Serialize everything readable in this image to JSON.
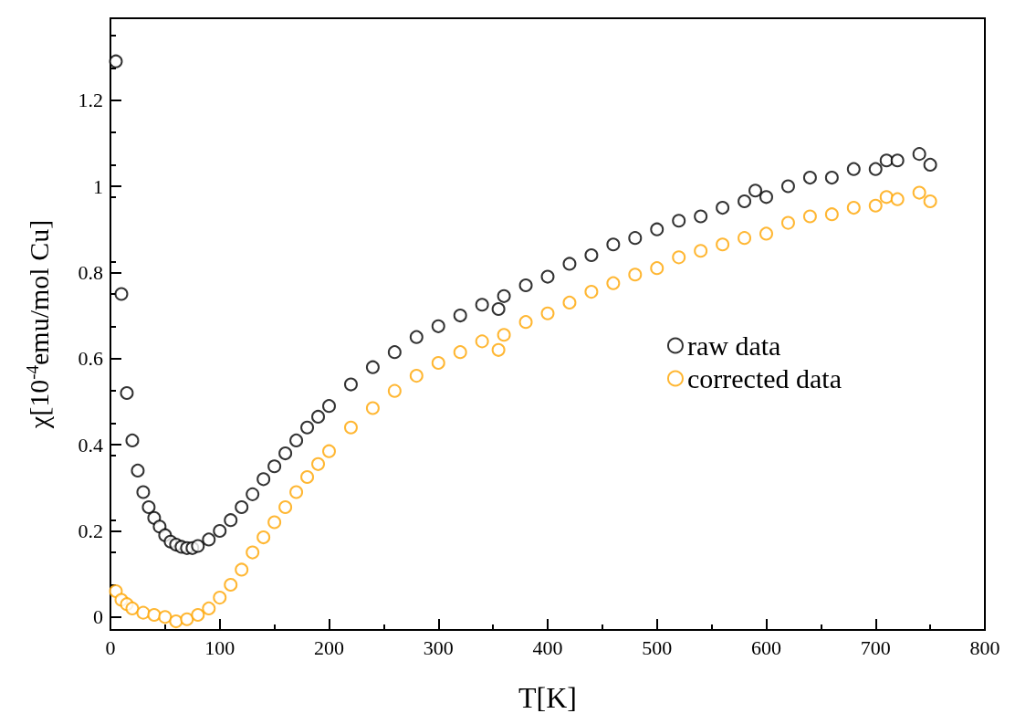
{
  "chart_data": {
    "type": "scatter",
    "xlabel": "T[K]",
    "ylabel": "χ[10$^{-4}$emu/mol Cu]",
    "xlim": [
      0,
      800
    ],
    "xticks": [
      0,
      100,
      200,
      300,
      400,
      500,
      600,
      700,
      800
    ],
    "ylim": [
      -0.03,
      1.39
    ],
    "yticks": [
      0,
      0.2,
      0.4,
      0.6,
      0.8,
      1,
      1.2
    ],
    "legend": "right",
    "marker": "circle",
    "series": [
      {
        "name": "raw data",
        "color": "#000000",
        "x": [
          5,
          10,
          15,
          20,
          25,
          30,
          35,
          40,
          45,
          50,
          55,
          60,
          65,
          70,
          75,
          80,
          90,
          100,
          110,
          120,
          130,
          140,
          150,
          160,
          170,
          180,
          190,
          200,
          220,
          240,
          260,
          280,
          300,
          320,
          340,
          355,
          360,
          380,
          400,
          420,
          440,
          460,
          480,
          500,
          520,
          540,
          560,
          580,
          590,
          600,
          620,
          640,
          660,
          680,
          700,
          710,
          720,
          740,
          750
        ],
        "values": [
          1.29,
          0.75,
          0.52,
          0.41,
          0.34,
          0.29,
          0.255,
          0.23,
          0.21,
          0.19,
          0.175,
          0.168,
          0.163,
          0.16,
          0.16,
          0.165,
          0.18,
          0.2,
          0.225,
          0.255,
          0.285,
          0.32,
          0.35,
          0.38,
          0.41,
          0.44,
          0.465,
          0.49,
          0.54,
          0.58,
          0.615,
          0.65,
          0.675,
          0.7,
          0.725,
          0.715,
          0.745,
          0.77,
          0.79,
          0.82,
          0.84,
          0.865,
          0.88,
          0.9,
          0.92,
          0.93,
          0.95,
          0.965,
          0.99,
          0.975,
          1.0,
          1.02,
          1.02,
          1.04,
          1.04,
          1.06,
          1.06,
          1.075,
          1.05
        ]
      },
      {
        "name": "corrected data",
        "color": "#ffa500",
        "x": [
          5,
          10,
          15,
          20,
          30,
          40,
          50,
          60,
          70,
          80,
          90,
          100,
          110,
          120,
          130,
          140,
          150,
          160,
          170,
          180,
          190,
          200,
          220,
          240,
          260,
          280,
          300,
          320,
          340,
          355,
          360,
          380,
          400,
          420,
          440,
          460,
          480,
          500,
          520,
          540,
          560,
          580,
          600,
          620,
          640,
          660,
          680,
          700,
          710,
          720,
          740,
          750
        ],
        "values": [
          0.06,
          0.04,
          0.03,
          0.02,
          0.01,
          0.005,
          0.0,
          -0.01,
          -0.005,
          0.005,
          0.02,
          0.045,
          0.075,
          0.11,
          0.15,
          0.185,
          0.22,
          0.255,
          0.29,
          0.325,
          0.355,
          0.385,
          0.44,
          0.485,
          0.525,
          0.56,
          0.59,
          0.615,
          0.64,
          0.62,
          0.655,
          0.685,
          0.705,
          0.73,
          0.755,
          0.775,
          0.795,
          0.81,
          0.835,
          0.85,
          0.865,
          0.88,
          0.89,
          0.915,
          0.93,
          0.935,
          0.95,
          0.955,
          0.975,
          0.97,
          0.985,
          0.965
        ]
      }
    ]
  }
}
